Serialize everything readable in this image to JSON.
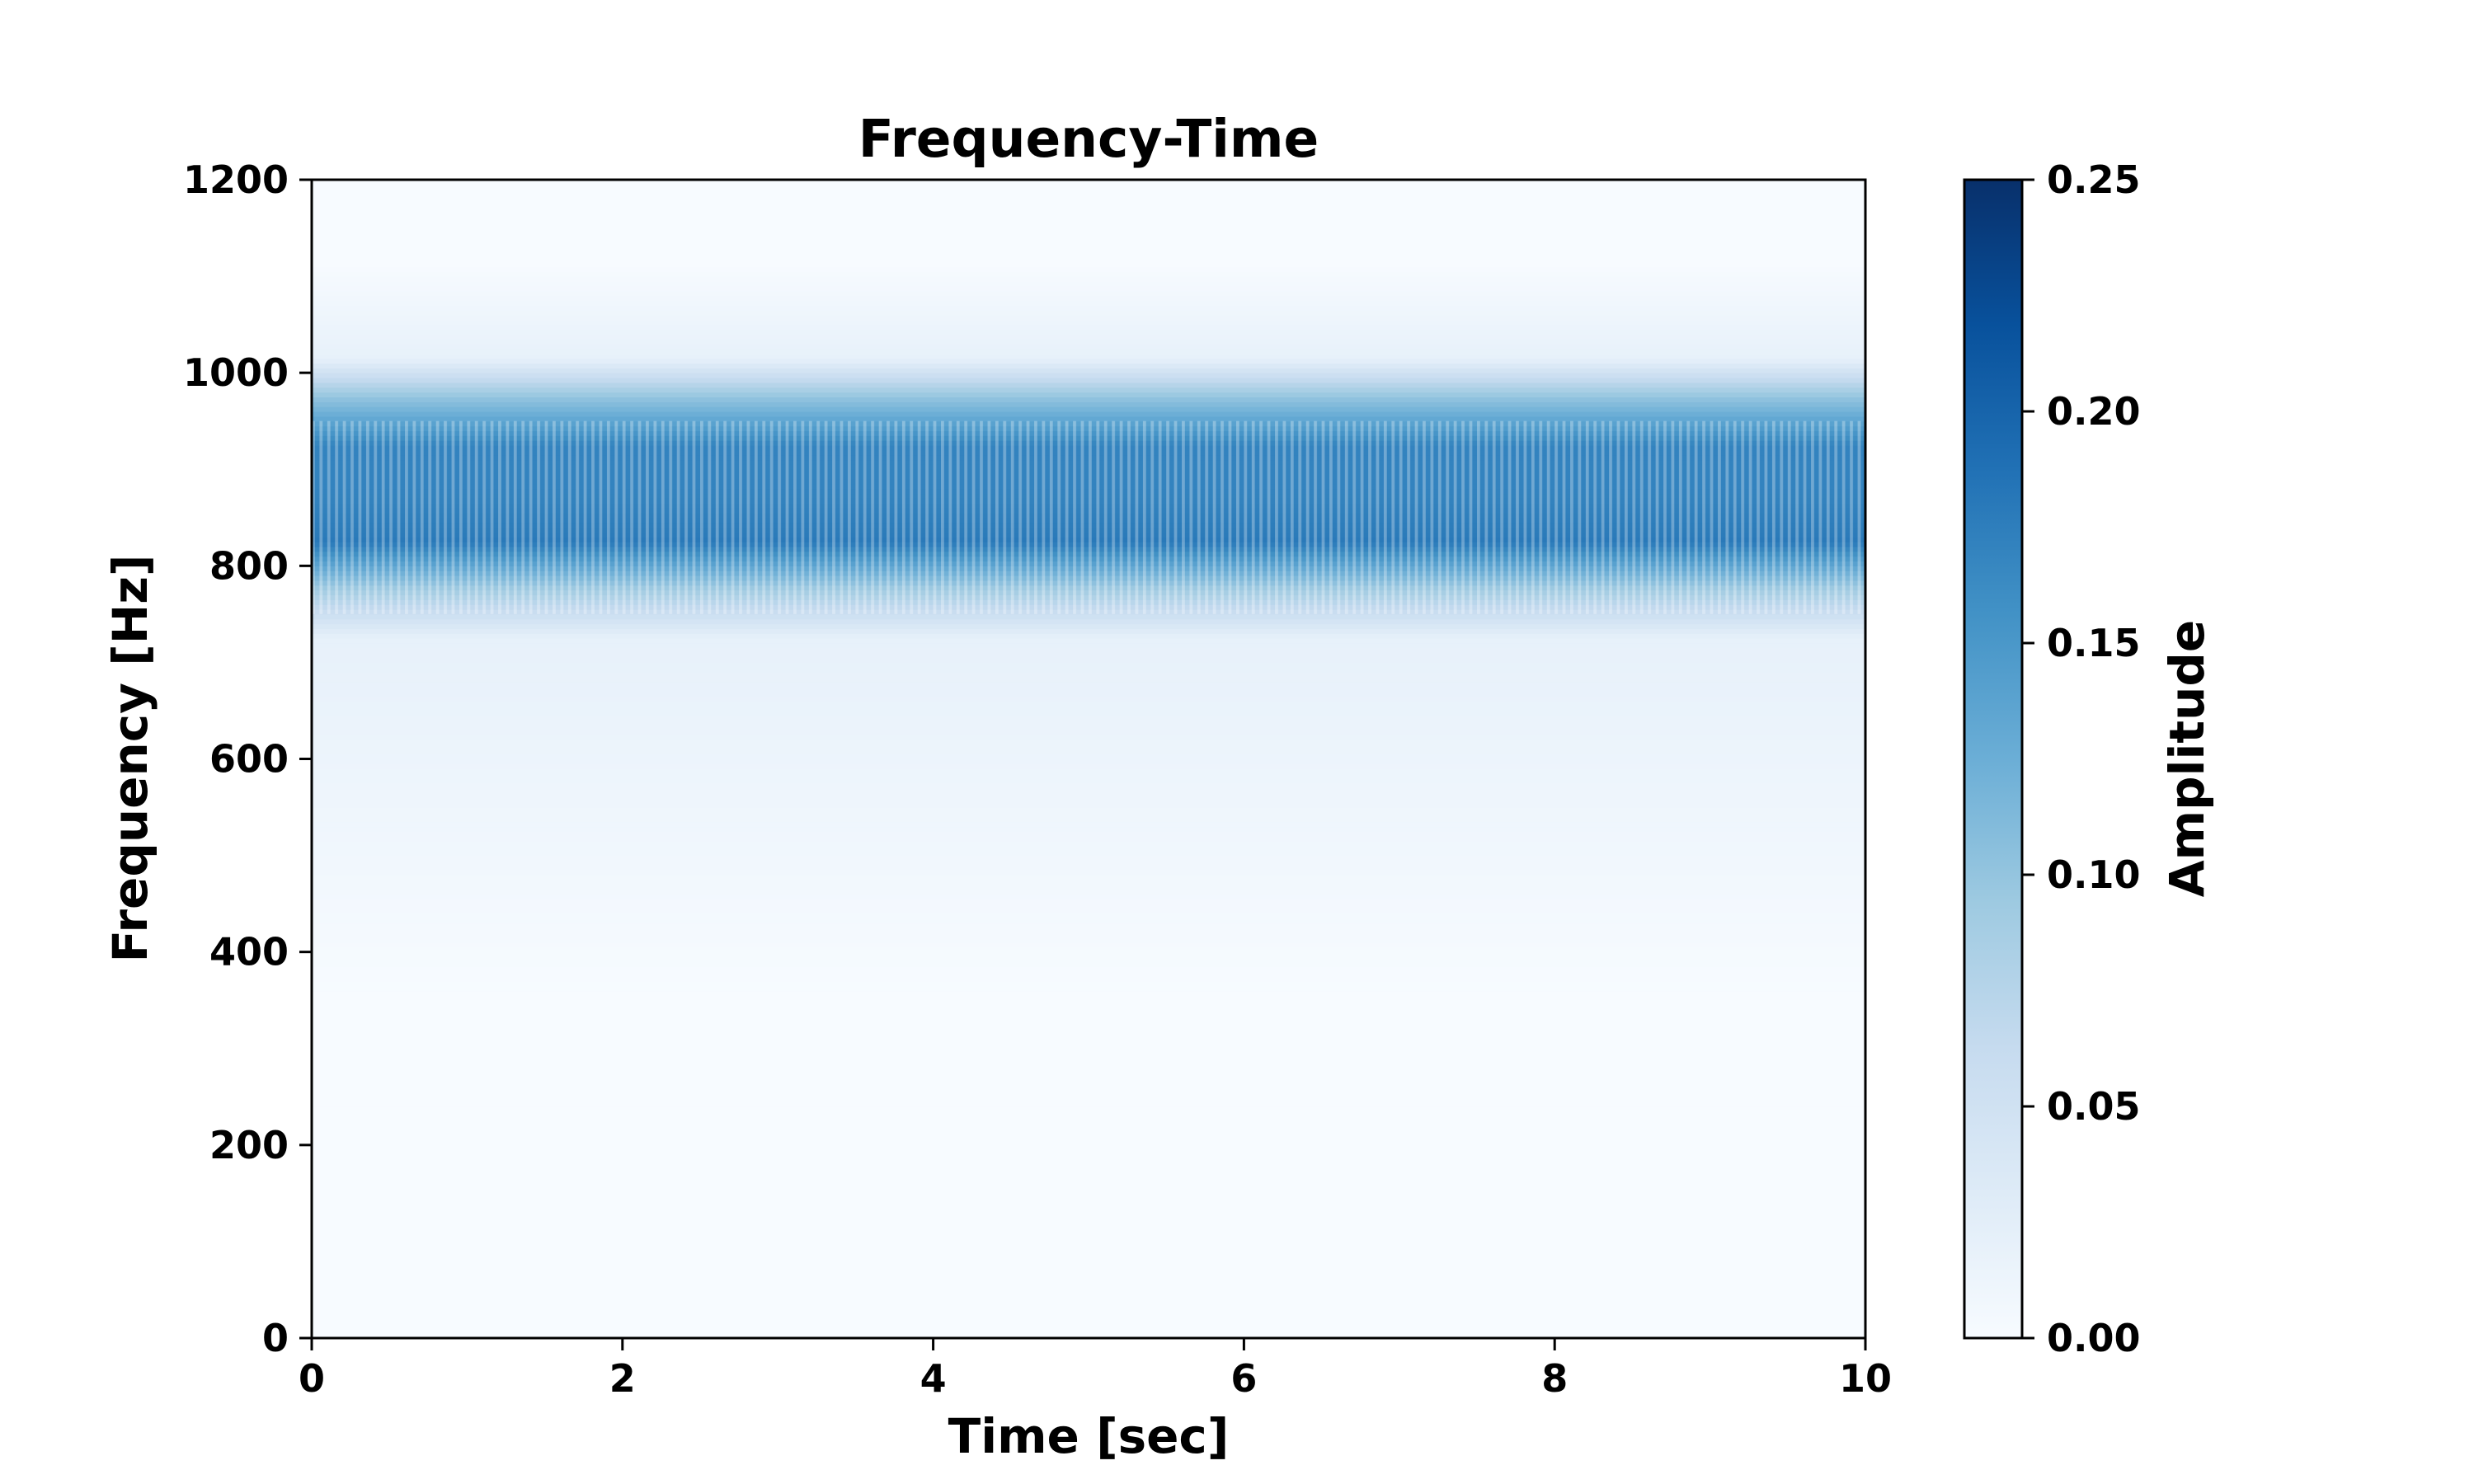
{
  "chart_data": {
    "type": "heatmap",
    "title": "Frequency-Time",
    "xlabel": "Time [sec]",
    "ylabel": "Frequency [Hz]",
    "xlim": [
      0,
      10
    ],
    "ylim": [
      0,
      1200
    ],
    "xticks": [
      0,
      2,
      4,
      6,
      8,
      10
    ],
    "xtick_labels": [
      "0",
      "2",
      "4",
      "6",
      "8",
      "10"
    ],
    "yticks": [
      0,
      200,
      400,
      600,
      800,
      1000,
      1200
    ],
    "ytick_labels": [
      "0",
      "200",
      "400",
      "600",
      "800",
      "1000",
      "1200"
    ],
    "grid": false,
    "colormap": "Blues",
    "colormap_stops": [
      "#f7fbff",
      "#deebf7",
      "#c6dbef",
      "#9ecae1",
      "#6baed6",
      "#4292c6",
      "#2171b5",
      "#08519c",
      "#08306b"
    ],
    "colorbar": {
      "label": "Amplitude",
      "range": [
        0.0,
        0.25
      ],
      "ticks": [
        0.0,
        0.05,
        0.1,
        0.15,
        0.2,
        0.25
      ],
      "tick_labels": [
        "0.00",
        "0.05",
        "0.10",
        "0.15",
        "0.20",
        "0.25"
      ]
    },
    "frequency_bands": [
      {
        "freq_min": 0,
        "freq_max": 700,
        "amplitude": 0.0
      },
      {
        "freq_min": 700,
        "freq_max": 750,
        "amplitude": 0.02
      },
      {
        "freq_min": 750,
        "freq_max": 800,
        "amplitude": 0.09
      },
      {
        "freq_min": 800,
        "freq_max": 850,
        "amplitude": 0.18
      },
      {
        "freq_min": 850,
        "freq_max": 900,
        "amplitude": 0.17
      },
      {
        "freq_min": 900,
        "freq_max": 950,
        "amplitude": 0.17
      },
      {
        "freq_min": 950,
        "freq_max": 1000,
        "amplitude": 0.1
      },
      {
        "freq_min": 1000,
        "freq_max": 1030,
        "amplitude": 0.02
      },
      {
        "freq_min": 1030,
        "freq_max": 1200,
        "amplitude": 0.0
      }
    ],
    "time_modulation": {
      "stripes_per_second": 20,
      "depth": 0.3,
      "freq_min": 750,
      "freq_max": 950
    }
  }
}
